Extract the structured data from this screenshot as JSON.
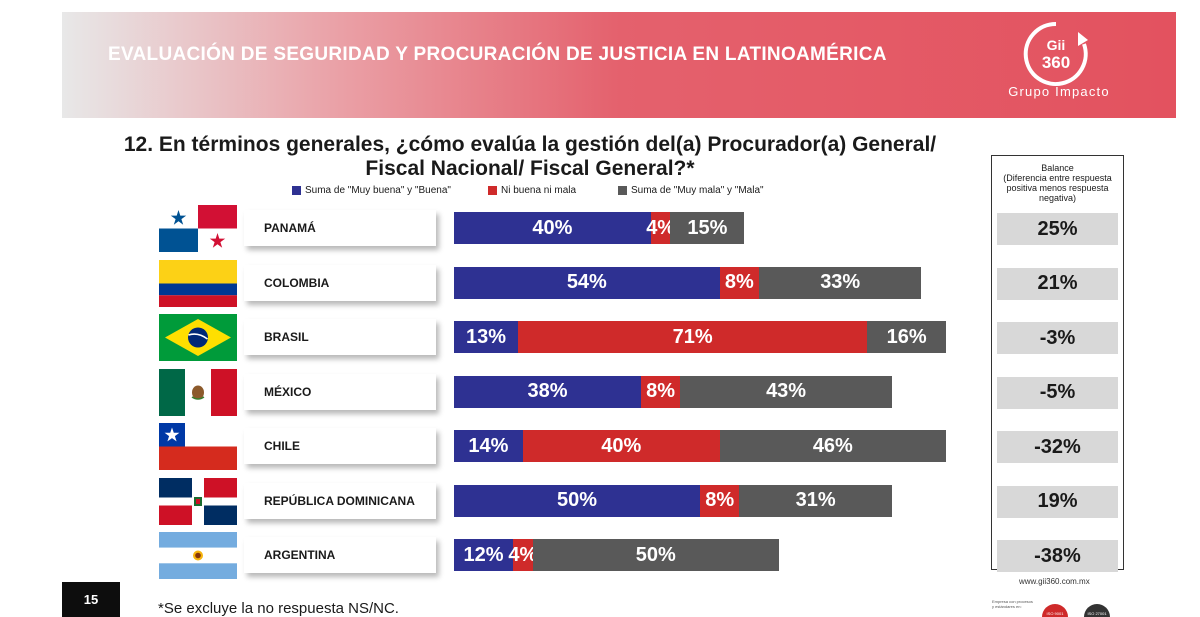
{
  "header": {
    "title": "EVALUACIÓN DE SEGURIDAD Y PROCURACIÓN DE JUSTICIA EN LATINOAMÉRICA",
    "logo_mark": "Gii\n360",
    "logo_line1": "Gii",
    "logo_line2": "360",
    "logo_text": "Grupo Impacto"
  },
  "question": "12. En términos generales, ¿cómo evalúa la gestión del(a) Procurador(a) General/ Fiscal Nacional/ Fiscal General?*",
  "colors": {
    "positive": "#2e3192",
    "neutral": "#cf2a2a",
    "negative": "#595959",
    "banner": "#e3525f"
  },
  "chart_data": {
    "type": "bar",
    "orientation": "horizontal",
    "stacked": true,
    "categories": [
      "PANAMÁ",
      "COLOMBIA",
      "BRASIL",
      "MÉXICO",
      "CHILE",
      "REPÚBLICA DOMINICANA",
      "ARGENTINA"
    ],
    "series": [
      {
        "name": "Suma de \"Muy buena\" y \"Buena\"",
        "values": [
          40,
          54,
          13,
          38,
          14,
          50,
          12
        ],
        "color": "#2e3192"
      },
      {
        "name": "Ni buena ni mala",
        "values": [
          4,
          8,
          71,
          8,
          40,
          8,
          4
        ],
        "color": "#cf2a2a"
      },
      {
        "name": "Suma de \"Muy mala\" y \"Mala\"",
        "values": [
          15,
          33,
          16,
          43,
          46,
          31,
          50
        ],
        "color": "#595959"
      }
    ],
    "value_suffix": "%",
    "legend_position": "top",
    "balance": {
      "title": "Balance (Diferencia entre respuesta positiva menos respuesta negativa)",
      "title_line1": "Balance",
      "title_line2": "(Diferencia entre respuesta positiva menos respuesta negativa)",
      "values": [
        "25%",
        "21%",
        "-3%",
        "-5%",
        "-32%",
        "19%",
        "-38%"
      ]
    }
  },
  "flags": [
    "panama-flag-icon",
    "colombia-flag-icon",
    "brazil-flag-icon",
    "mexico-flag-icon",
    "chile-flag-icon",
    "dominican-republic-flag-icon",
    "argentina-flag-icon"
  ],
  "footer": {
    "page_number": "15",
    "footnote": "*Se excluye la no respuesta NS/NC.",
    "website": "www.gii360.com.mx",
    "cert_text": "Empresa con procesos y estándares en:",
    "cert_badges": [
      "ISO 9001",
      "ISO 27001"
    ]
  }
}
